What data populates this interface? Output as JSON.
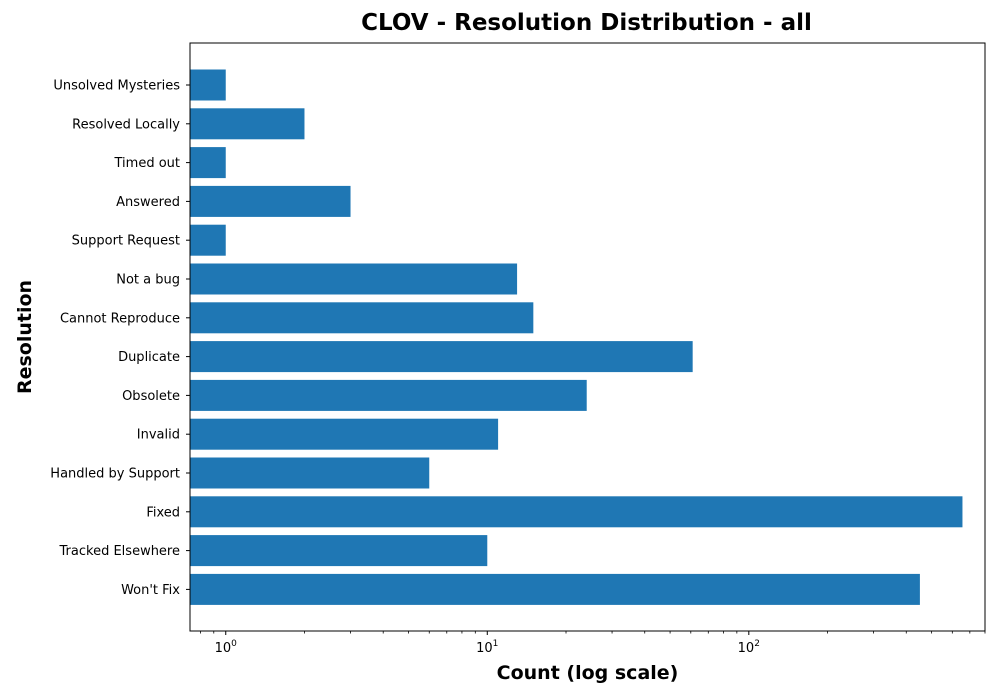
{
  "chart_data": {
    "type": "bar",
    "orientation": "horizontal",
    "title": "CLOV - Resolution Distribution - all",
    "xlabel": "Count (log scale)",
    "ylabel": "Resolution",
    "x_scale": "log",
    "xlim": [
      0.73,
      800
    ],
    "x_ticks": [
      {
        "value": 1,
        "base": "10",
        "exp": "0"
      },
      {
        "value": 10,
        "base": "10",
        "exp": "1"
      },
      {
        "value": 100,
        "base": "10",
        "exp": "2"
      }
    ],
    "grid": false,
    "color": "#1f77b4",
    "categories": [
      "Unsolved Mysteries",
      "Resolved Locally",
      "Timed out",
      "Answered",
      "Support Request",
      "Not a bug",
      "Cannot Reproduce",
      "Duplicate",
      "Obsolete",
      "Invalid",
      "Handled by Support",
      "Fixed",
      "Tracked Elsewhere",
      "Won't Fix"
    ],
    "values": [
      1,
      2,
      1,
      3,
      1,
      13,
      15,
      61,
      24,
      11,
      6,
      656,
      10,
      451
    ]
  }
}
